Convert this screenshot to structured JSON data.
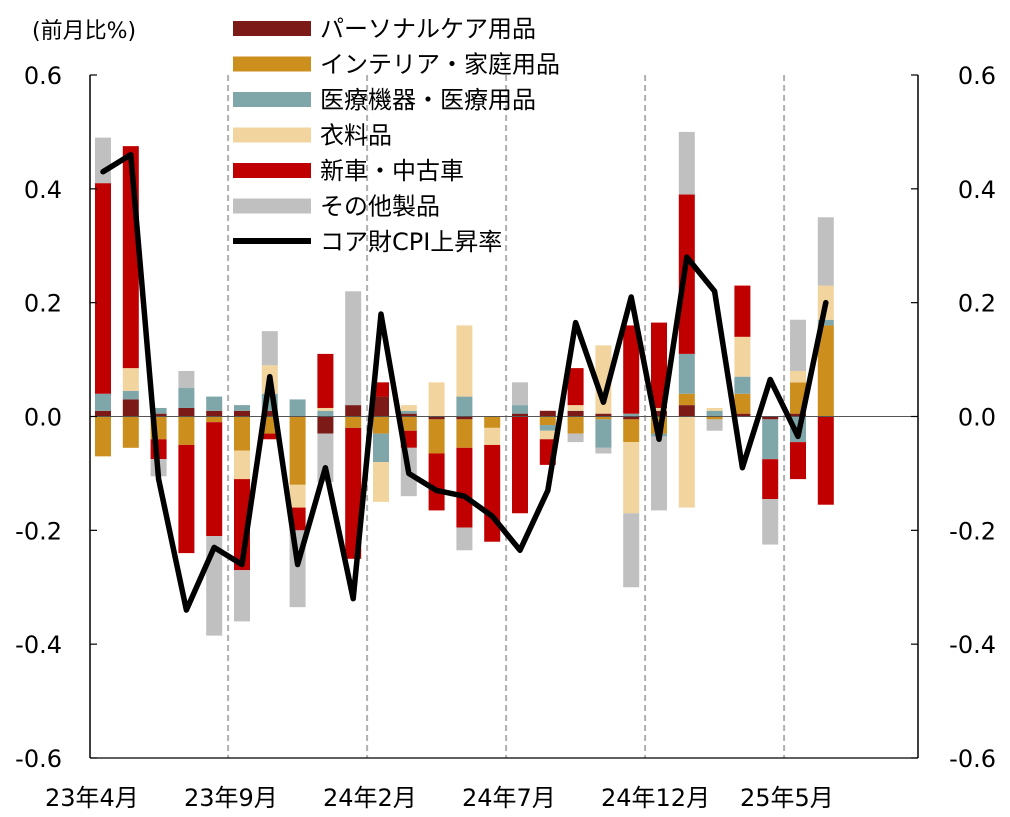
{
  "chart_data": {
    "type": "bar",
    "stacked": true,
    "unit_label": "(前月比%)",
    "ylim": [
      -0.6,
      0.6
    ],
    "y_ticks": [
      "0.6",
      "0.4",
      "0.2",
      "0.0",
      "-0.2",
      "-0.4",
      "-0.6"
    ],
    "y_tick_values": [
      0.6,
      0.4,
      0.2,
      0.0,
      -0.2,
      -0.4,
      -0.6
    ],
    "secondary_axis": true,
    "grid": false,
    "period_separators_after_index": [
      4,
      9,
      14,
      19,
      24
    ],
    "x_tick_labels": [
      {
        "index": 0,
        "label": "23年4月"
      },
      {
        "index": 5,
        "label": "23年9月"
      },
      {
        "index": 10,
        "label": "24年2月"
      },
      {
        "index": 15,
        "label": "24年7月"
      },
      {
        "index": 20,
        "label": "24年12月"
      },
      {
        "index": 25,
        "label": "25年5月"
      }
    ],
    "categories": [
      "23/4",
      "23/5",
      "23/6",
      "23/7",
      "23/8",
      "23/9",
      "23/10",
      "23/11",
      "23/12",
      "24/1",
      "24/2",
      "24/3",
      "24/4",
      "24/5",
      "24/6",
      "24/7",
      "24/8",
      "24/9",
      "24/10",
      "24/11",
      "24/12",
      "25/1",
      "25/2",
      "25/3",
      "25/4",
      "25/5",
      "25/6"
    ],
    "series": [
      {
        "name": "パーソナルケア用品",
        "color": "#7b1a17",
        "kind": "bar",
        "values": [
          0.01,
          0.03,
          0.005,
          0.015,
          0.01,
          0.01,
          0.01,
          0.0,
          -0.03,
          0.02,
          0.035,
          0.005,
          -0.005,
          -0.005,
          0.0,
          0.005,
          0.01,
          0.01,
          0.005,
          -0.005,
          0.01,
          0.02,
          0.0,
          0.005,
          -0.005,
          0.005,
          0.0
        ]
      },
      {
        "name": "インテリア・家庭用品",
        "color": "#cc8f1d",
        "kind": "bar",
        "values": [
          -0.07,
          -0.055,
          -0.04,
          -0.05,
          -0.01,
          -0.06,
          -0.03,
          -0.12,
          0.0,
          -0.02,
          -0.03,
          -0.025,
          -0.06,
          -0.05,
          -0.02,
          0.0,
          -0.015,
          -0.03,
          -0.005,
          -0.04,
          -0.03,
          0.02,
          -0.005,
          0.035,
          0.0,
          0.055,
          0.16
        ]
      },
      {
        "name": "医療機器・医療用品",
        "color": "#7fa6a9",
        "kind": "bar",
        "values": [
          0.03,
          0.015,
          0.01,
          0.035,
          0.025,
          0.01,
          0.03,
          0.03,
          0.01,
          0.0,
          -0.05,
          0.005,
          0.0,
          0.035,
          0.0,
          0.015,
          -0.01,
          0.0,
          -0.05,
          0.005,
          -0.005,
          0.07,
          0.01,
          0.03,
          -0.07,
          -0.045,
          0.01
        ]
      },
      {
        "name": "衣料品",
        "color": "#f2d49e",
        "kind": "bar",
        "values": [
          0.0,
          0.04,
          0.0,
          0.0,
          0.0,
          -0.05,
          0.05,
          -0.04,
          0.005,
          0.0,
          -0.07,
          0.01,
          0.06,
          0.125,
          -0.03,
          0.0,
          -0.015,
          0.01,
          0.12,
          -0.125,
          0.005,
          -0.16,
          0.005,
          0.07,
          0.0,
          0.02,
          0.06
        ]
      },
      {
        "name": "新車・中古車",
        "color": "#c00000",
        "kind": "bar",
        "values": [
          0.37,
          0.39,
          -0.035,
          -0.19,
          -0.2,
          -0.16,
          -0.01,
          -0.04,
          0.095,
          -0.23,
          0.025,
          -0.03,
          -0.1,
          -0.14,
          -0.17,
          -0.17,
          -0.045,
          0.065,
          0.0,
          0.155,
          0.15,
          0.28,
          0.0,
          0.09,
          -0.07,
          -0.065,
          -0.155
        ]
      },
      {
        "name": "その他製品",
        "color": "#c0c0c0",
        "kind": "bar",
        "values": [
          0.08,
          0.0,
          -0.03,
          0.03,
          -0.175,
          -0.09,
          0.06,
          -0.135,
          -0.085,
          0.2,
          0.0,
          -0.085,
          0.0,
          -0.04,
          0.0,
          0.04,
          0.0,
          -0.015,
          -0.01,
          -0.13,
          -0.13,
          0.11,
          -0.02,
          0.0,
          -0.08,
          0.09,
          0.12
        ]
      },
      {
        "name": "コア財CPI上昇率",
        "color": "#000000",
        "kind": "line",
        "values": [
          0.43,
          0.46,
          -0.11,
          -0.34,
          -0.23,
          -0.26,
          0.07,
          -0.26,
          -0.09,
          -0.32,
          0.18,
          -0.1,
          -0.13,
          -0.14,
          -0.175,
          -0.235,
          -0.13,
          0.165,
          0.025,
          0.21,
          -0.04,
          0.28,
          0.22,
          -0.09,
          0.065,
          -0.035,
          0.2
        ]
      }
    ]
  }
}
